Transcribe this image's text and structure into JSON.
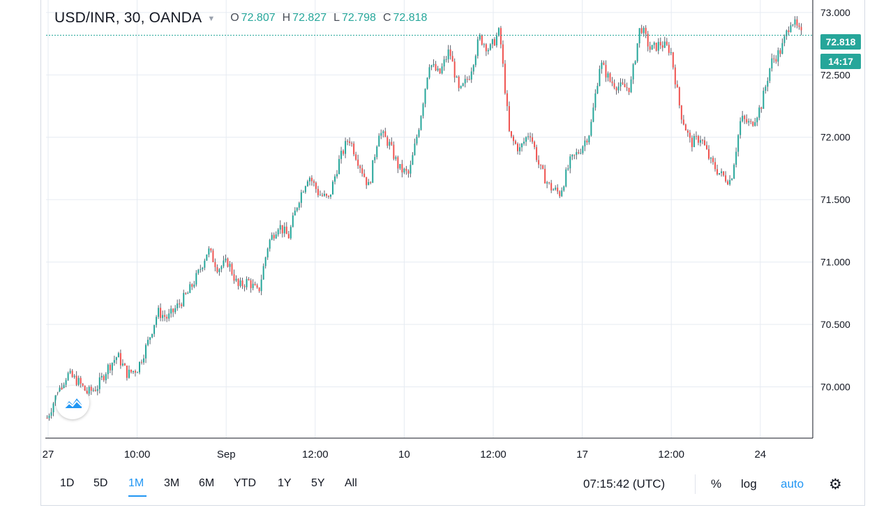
{
  "header": {
    "symbol": "USD/INR, 30, OANDA",
    "ohlc": [
      {
        "key": "O",
        "value": "72.807"
      },
      {
        "key": "H",
        "value": "72.827"
      },
      {
        "key": "L",
        "value": "72.798"
      },
      {
        "key": "C",
        "value": "72.818"
      }
    ]
  },
  "price_scale": {
    "labels": [
      "73.000",
      "72.500",
      "72.000",
      "71.500",
      "71.000",
      "70.500",
      "70.000"
    ],
    "last_price_label": "72.818",
    "countdown_label": "14:17"
  },
  "time_axis": {
    "labels": [
      "27",
      "10:00",
      "Sep",
      "12:00",
      "10",
      "12:00",
      "17",
      "12:00",
      "24"
    ]
  },
  "range_buttons": [
    "1D",
    "5D",
    "1M",
    "3M",
    "6M",
    "YTD",
    "1Y",
    "5Y",
    "All"
  ],
  "active_range": "1M",
  "clock": "07:15:42 (UTC)",
  "toggles": {
    "percent": "%",
    "log": "log",
    "auto": "auto"
  },
  "colors": {
    "up": "#26a69a",
    "down": "#ef5350",
    "wick": "#5d606b",
    "grid": "#e6ebf2",
    "accent": "#2196f3"
  },
  "icons": {
    "logo": "tradingview-cloud-icon",
    "settings": "gear-icon",
    "caret": "chevron-down-icon"
  },
  "chart_data": {
    "type": "line",
    "subtype": "candlestick",
    "title": "USD/INR, 30, OANDA",
    "ylim": [
      69.6,
      73.1
    ],
    "yticks": [
      73.0,
      72.5,
      72.0,
      71.5,
      71.0,
      70.5,
      70.0
    ],
    "xticks": [
      "27",
      "10:00",
      "Sep",
      "12:00",
      "10",
      "12:00",
      "17",
      "12:00",
      "24"
    ],
    "last_price": 72.818,
    "series": [
      {
        "values": [
          69.75,
          69.95,
          70.1,
          70.05,
          69.95,
          70.0,
          70.15,
          70.25,
          70.1,
          70.15,
          70.35,
          70.6,
          70.55,
          70.65,
          70.75,
          70.9,
          71.1,
          70.95,
          71.0,
          70.8,
          70.85,
          70.75,
          71.15,
          71.3,
          71.2,
          71.5,
          71.7,
          71.55,
          71.5,
          71.8,
          72.0,
          71.8,
          71.6,
          72.05,
          71.95,
          71.75,
          71.7,
          72.1,
          72.6,
          72.5,
          72.7,
          72.35,
          72.5,
          72.8,
          72.7,
          72.85,
          72.0,
          71.9,
          72.05,
          71.75,
          71.6,
          71.55,
          71.8,
          71.9,
          72.05,
          72.6,
          72.45,
          72.4,
          72.4,
          72.9,
          72.7,
          72.75,
          72.7,
          72.2,
          71.95,
          72.0,
          71.8,
          71.7,
          71.65,
          72.15,
          72.1,
          72.25,
          72.6,
          72.7,
          72.95,
          72.818
        ]
      }
    ]
  }
}
